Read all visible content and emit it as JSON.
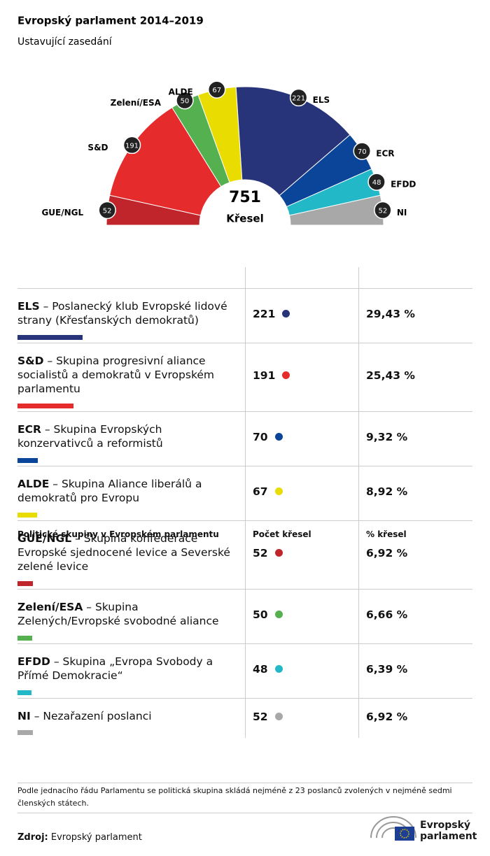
{
  "chart_data": {
    "type": "parliament",
    "title": "Evropský parlament 2014–2019",
    "subtitle": "Ustavující zasedání",
    "total": 751,
    "total_label": "Křesel",
    "categories": [
      "GUE/NGL",
      "S&D",
      "Zelení/ESA",
      "ALDE",
      "ELS",
      "ECR",
      "EFDD",
      "NI"
    ],
    "values": [
      52,
      191,
      50,
      67,
      221,
      70,
      48,
      52
    ],
    "colors": [
      "#c0252b",
      "#e52b2b",
      "#55b04f",
      "#e9dc00",
      "#283479",
      "#0a4599",
      "#22b8c8",
      "#a8a8a8"
    ]
  },
  "table": {
    "headers": [
      "Politické skupiny v Evropském parlamentu",
      "Počet křesel",
      "% křesel"
    ],
    "rows": [
      {
        "abbr": "ELS",
        "desc": "– Poslanecký klub Evropské lidové strany (Křesťanských demokratů)",
        "seats": 221,
        "share": "29,43 %",
        "color": "#283479"
      },
      {
        "abbr": "S&D",
        "desc": "– Skupina progresivní aliance socialistů a demokratů v Evropském parlamentu",
        "seats": 191,
        "share": "25,43 %",
        "color": "#e52b2b"
      },
      {
        "abbr": "ECR",
        "desc": "– Skupina Evropských konzervativců a reformistů",
        "seats": 70,
        "share": "9,32 %",
        "color": "#0a4599"
      },
      {
        "abbr": "ALDE",
        "desc": "– Skupina Aliance liberálů a demokratů pro Evropu",
        "seats": 67,
        "share": "8,92 %",
        "color": "#e9dc00"
      },
      {
        "abbr": "GUE/NGL",
        "desc": "– Skupina konfederace Evropské sjednocené levice a Severské zelené levice",
        "seats": 52,
        "share": "6,92 %",
        "color": "#c0252b"
      },
      {
        "abbr": "Zelení/ESA",
        "desc": "– Skupina Zelených/Evropské svobodné aliance",
        "seats": 50,
        "share": "6,66 %",
        "color": "#55b04f"
      },
      {
        "abbr": "EFDD",
        "desc": "– Skupina „Evropa Svobody a Přímé Demokracie“",
        "seats": 48,
        "share": "6,39 %",
        "color": "#22b8c8"
      },
      {
        "abbr": "NI",
        "desc": "– Nezařazení poslanci",
        "seats": 52,
        "share": "6,92 %",
        "color": "#a8a8a8"
      }
    ]
  },
  "footnote": "Podle jednacího řádu Parlamentu se politická skupina skládá nejméně z 23 poslanců zvolených v nejméně sedmi členských státech.",
  "source": {
    "label": "Zdroj:",
    "text": "Evropský parlament"
  },
  "logo": {
    "lines": [
      "Evropský",
      "parlament"
    ]
  }
}
